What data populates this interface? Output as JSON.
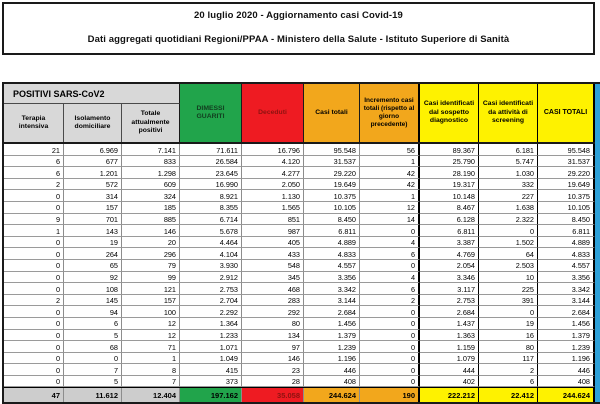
{
  "title": {
    "line1": "20 luglio 2020 - Aggiornamento casi Covid-19",
    "line2": "Dati aggregati quotidiani Regioni/PPAA - Ministero della Salute - Istituto Superiore di Sanità"
  },
  "table": {
    "positivi_group_label": "POSITIVI SARS-CoV2",
    "columns": [
      "Terapia intensiva",
      "Isolamento domiciliare",
      "Totale attualmente positivi",
      "DIMESSI GUARITI",
      "Deceduti",
      "Casi totali",
      "Incremento casi totali (rispetto al giorno precedente)",
      "Casi identificati dal sospetto diagnostico",
      "Casi identificati da attività di screening",
      "CASI TOTALI"
    ],
    "rows": [
      [
        "21",
        "6.969",
        "7.141",
        "71.611",
        "16.796",
        "95.548",
        "56",
        "89.367",
        "6.181",
        "95.548"
      ],
      [
        "6",
        "677",
        "833",
        "26.584",
        "4.120",
        "31.537",
        "1",
        "25.790",
        "5.747",
        "31.537"
      ],
      [
        "6",
        "1.201",
        "1.298",
        "23.645",
        "4.277",
        "29.220",
        "42",
        "28.190",
        "1.030",
        "29.220"
      ],
      [
        "2",
        "572",
        "609",
        "16.990",
        "2.050",
        "19.649",
        "42",
        "19.317",
        "332",
        "19.649"
      ],
      [
        "0",
        "314",
        "324",
        "8.921",
        "1.130",
        "10.375",
        "1",
        "10.148",
        "227",
        "10.375"
      ],
      [
        "0",
        "157",
        "185",
        "8.355",
        "1.565",
        "10.105",
        "12",
        "8.467",
        "1.638",
        "10.105"
      ],
      [
        "9",
        "701",
        "885",
        "6.714",
        "851",
        "8.450",
        "14",
        "6.128",
        "2.322",
        "8.450"
      ],
      [
        "1",
        "143",
        "146",
        "5.678",
        "987",
        "6.811",
        "0",
        "6.811",
        "0",
        "6.811"
      ],
      [
        "0",
        "19",
        "20",
        "4.464",
        "405",
        "4.889",
        "4",
        "3.387",
        "1.502",
        "4.889"
      ],
      [
        "0",
        "264",
        "296",
        "4.104",
        "433",
        "4.833",
        "6",
        "4.769",
        "64",
        "4.833"
      ],
      [
        "0",
        "65",
        "79",
        "3.930",
        "548",
        "4.557",
        "0",
        "2.054",
        "2.503",
        "4.557"
      ],
      [
        "0",
        "92",
        "99",
        "2.912",
        "345",
        "3.356",
        "4",
        "3.346",
        "10",
        "3.356"
      ],
      [
        "0",
        "108",
        "121",
        "2.753",
        "468",
        "3.342",
        "6",
        "3.117",
        "225",
        "3.342"
      ],
      [
        "2",
        "145",
        "157",
        "2.704",
        "283",
        "3.144",
        "2",
        "2.753",
        "391",
        "3.144"
      ],
      [
        "0",
        "94",
        "100",
        "2.292",
        "292",
        "2.684",
        "0",
        "2.684",
        "0",
        "2.684"
      ],
      [
        "0",
        "6",
        "12",
        "1.364",
        "80",
        "1.456",
        "0",
        "1.437",
        "19",
        "1.456"
      ],
      [
        "0",
        "5",
        "12",
        "1.233",
        "134",
        "1.379",
        "0",
        "1.363",
        "16",
        "1.379"
      ],
      [
        "0",
        "68",
        "71",
        "1.071",
        "97",
        "1.239",
        "0",
        "1.159",
        "80",
        "1.239"
      ],
      [
        "0",
        "0",
        "1",
        "1.049",
        "146",
        "1.196",
        "0",
        "1.079",
        "117",
        "1.196"
      ],
      [
        "0",
        "7",
        "8",
        "415",
        "23",
        "446",
        "0",
        "444",
        "2",
        "446"
      ],
      [
        "0",
        "5",
        "7",
        "373",
        "28",
        "408",
        "0",
        "402",
        "6",
        "408"
      ]
    ],
    "totals": [
      "47",
      "11.612",
      "12.404",
      "197.162",
      "35.058",
      "244.624",
      "190",
      "222.212",
      "22.412",
      "244.624"
    ]
  },
  "colors": {
    "green": "#21a44b",
    "red": "#ee1b22",
    "orange": "#f2a71c",
    "yellow": "#fef200",
    "gray_header": "#d8d8d8",
    "gray_total": "#cdcdcd",
    "blue": "#2da0d8",
    "dark_red_text": "#8e1210",
    "dark_green_text": "#123d1f"
  }
}
